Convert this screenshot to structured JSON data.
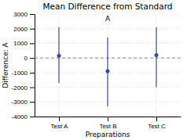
{
  "chart_data": {
    "type": "errorbar",
    "title": "Mean Difference from Standard",
    "x_label": "Preparations",
    "y_label": "Difference: A",
    "categories": [
      "Test A",
      "Test B",
      "Test C"
    ],
    "values": [
      150,
      -900,
      200
    ],
    "upper": [
      2100,
      1400,
      2100
    ],
    "lower": [
      -1700,
      -3300,
      -2000
    ],
    "hline": 0,
    "color": "#3f4b8c",
    "ylim": [
      -4000,
      3000
    ],
    "yticks": [
      -4000,
      -3000,
      -2000,
      -1000,
      0,
      1000,
      2000,
      3000
    ],
    "grid": true,
    "annotations": [
      {
        "text": "A",
        "x": "Test B"
      }
    ]
  }
}
